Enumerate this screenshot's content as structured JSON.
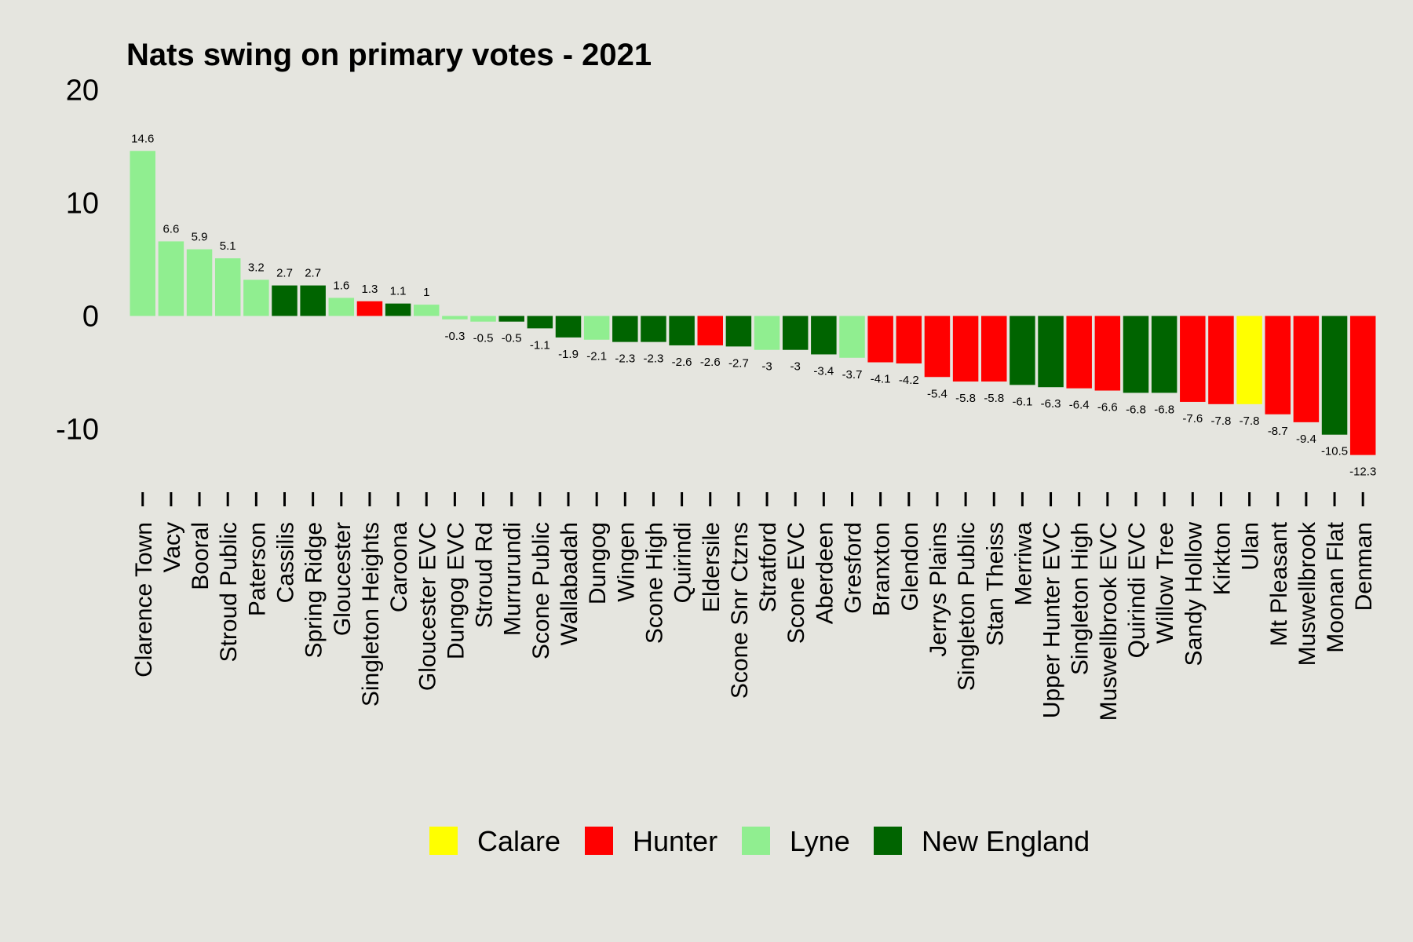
{
  "chart_data": {
    "type": "bar",
    "title": "Nats swing on primary votes - 2021",
    "xlabel": "",
    "ylabel": "",
    "ylim": [
      -15,
      20
    ],
    "yticks": [
      20,
      10,
      0,
      -10
    ],
    "grid": false,
    "legend_position": "bottom",
    "categories": [
      "Clarence Town",
      "Vacy",
      "Booral",
      "Stroud Public",
      "Paterson",
      "Cassilis",
      "Spring Ridge",
      "Gloucester",
      "Singleton Heights",
      "Caroona",
      "Gloucester EVC",
      "Dungog EVC",
      "Stroud Rd",
      "Murrurundi",
      "Scone Public",
      "Wallabadah",
      "Dungog",
      "Wingen",
      "Scone High",
      "Quirindi",
      "Eldersile",
      "Scone Snr Ctzns",
      "Stratford",
      "Scone EVC",
      "Aberdeen",
      "Gresford",
      "Branxton",
      "Glendon",
      "Jerrys Plains",
      "Singleton Public",
      "Stan Theiss",
      "Merriwa",
      "Upper Hunter EVC",
      "Singleton High",
      "Muswellbrook EVC",
      "Quirindi EVC",
      "Willow Tree",
      "Sandy Hollow",
      "Kirkton",
      "Ulan",
      "Mt Pleasant",
      "Muswellbrook",
      "Moonan Flat",
      "Denman"
    ],
    "values": [
      14.6,
      6.6,
      5.9,
      5.1,
      3.2,
      2.7,
      2.7,
      1.6,
      1.3,
      1.1,
      1,
      -0.3,
      -0.5,
      -0.5,
      -1.1,
      -1.9,
      -2.1,
      -2.3,
      -2.3,
      -2.6,
      -2.6,
      -2.7,
      -3,
      -3,
      -3.4,
      -3.7,
      -4.1,
      -4.2,
      -5.4,
      -5.8,
      -5.8,
      -6.1,
      -6.3,
      -6.4,
      -6.6,
      -6.8,
      -6.8,
      -7.6,
      -7.8,
      -7.8,
      -8.7,
      -9.4,
      -10.5,
      -12.3
    ],
    "value_labels": [
      "14.6",
      "6.6",
      "5.9",
      "5.1",
      "3.2",
      "2.7",
      "2.7",
      "1.6",
      "1.3",
      "1.1",
      "1",
      "-0.3",
      "-0.5",
      "-0.5",
      "-1.1",
      "-1.9",
      "-2.1",
      "-2.3",
      "-2.3",
      "-2.6",
      "-2.6",
      "-2.7",
      "-3",
      "-3",
      "-3.4",
      "-3.7",
      "-4.1",
      "-4.2",
      "-5.4",
      "-5.8",
      "-5.8",
      "-6.1",
      "-6.3",
      "-6.4",
      "-6.6",
      "-6.8",
      "-6.8",
      "-7.6",
      "-7.8",
      "-7.8",
      "-8.7",
      "-9.4",
      "-10.5",
      "-12.3"
    ],
    "groups": [
      "Lyne",
      "Lyne",
      "Lyne",
      "Lyne",
      "Lyne",
      "New England",
      "New England",
      "Lyne",
      "Hunter",
      "New England",
      "Lyne",
      "Lyne",
      "Lyne",
      "New England",
      "New England",
      "New England",
      "Lyne",
      "New England",
      "New England",
      "New England",
      "Hunter",
      "New England",
      "Lyne",
      "New England",
      "New England",
      "Lyne",
      "Hunter",
      "Hunter",
      "Hunter",
      "Hunter",
      "Hunter",
      "New England",
      "New England",
      "Hunter",
      "Hunter",
      "New England",
      "New England",
      "Hunter",
      "Hunter",
      "Calare",
      "Hunter",
      "Hunter",
      "New England",
      "Hunter"
    ],
    "legend": [
      {
        "name": "Calare",
        "color": "#ffff00"
      },
      {
        "name": "Hunter",
        "color": "#ff0000"
      },
      {
        "name": "Lyne",
        "color": "#90ee90"
      },
      {
        "name": "New England",
        "color": "#006400"
      }
    ]
  }
}
